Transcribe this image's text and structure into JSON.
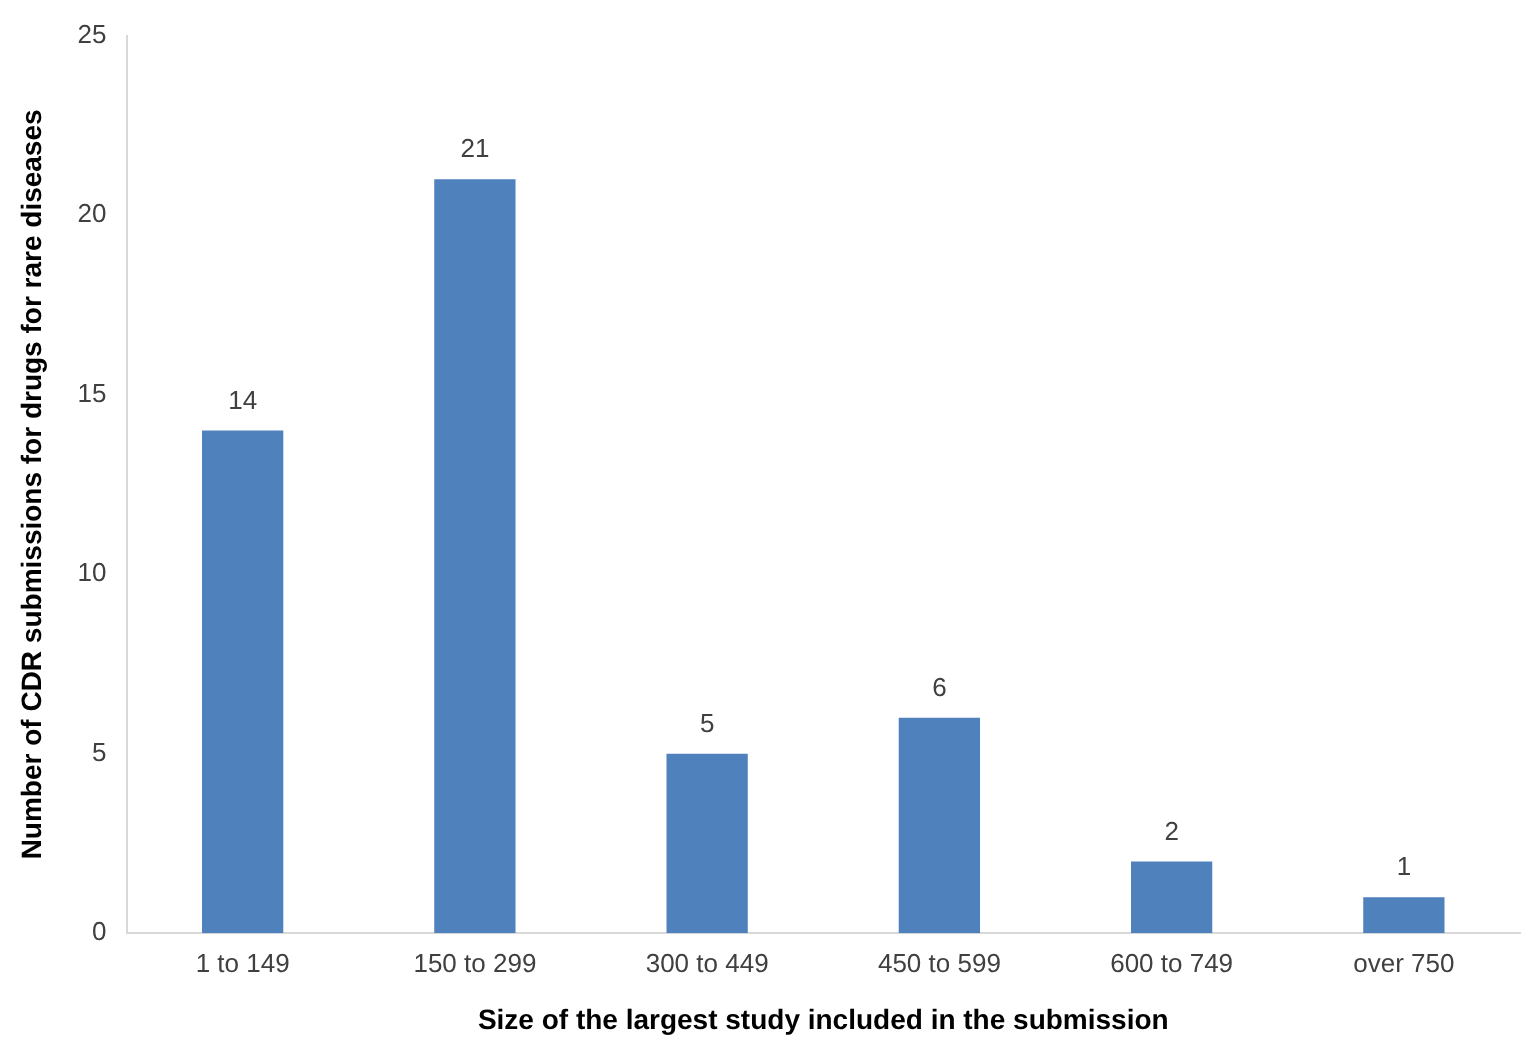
{
  "chart_data": {
    "type": "bar",
    "xlabel": "Size of the largest study included in the submission",
    "ylabel": "Number of CDR submissions for drugs for rare diseases",
    "categories": [
      "1 to 149",
      "150 to 299",
      "300 to 449",
      "450 to 599",
      "600 to 749",
      "over 750"
    ],
    "values": [
      14,
      21,
      5,
      6,
      2,
      1
    ],
    "color": "#4f81bd",
    "ylim": [
      0,
      25
    ],
    "yticks": [
      0,
      5,
      10,
      15,
      20,
      25
    ],
    "grid": false,
    "data_labels": true,
    "legend": false
  }
}
